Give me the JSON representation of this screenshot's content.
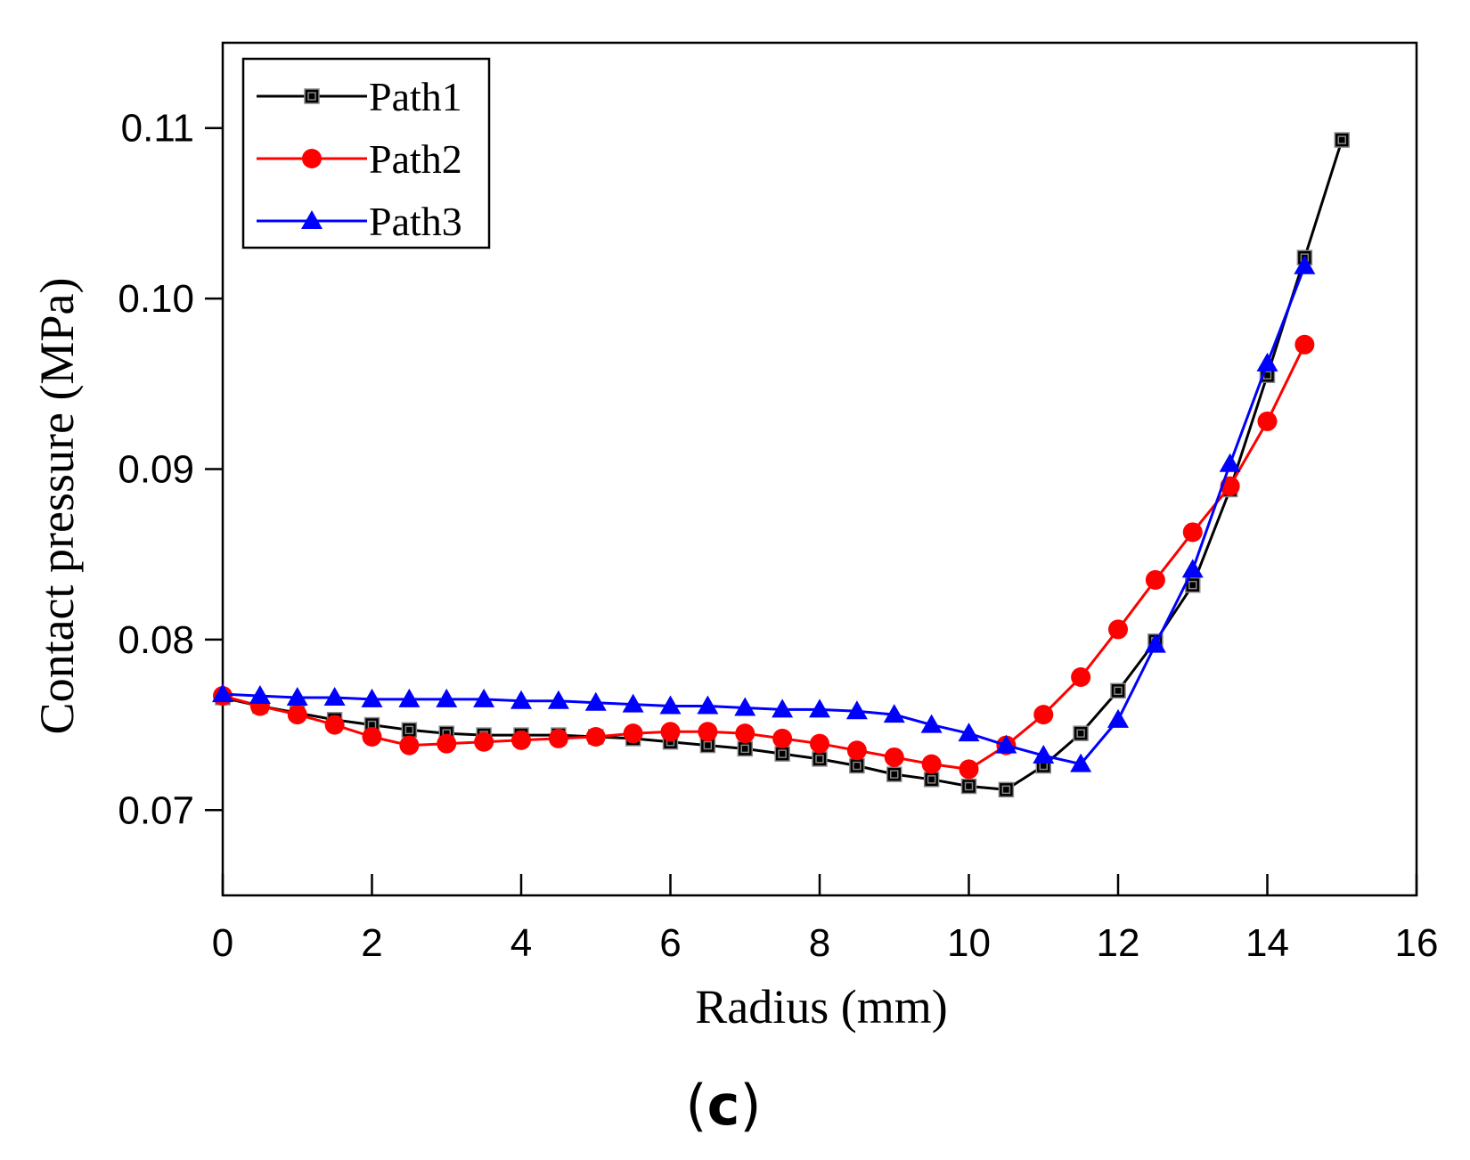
{
  "chart_data": {
    "type": "line",
    "xlabel": "Radius (mm)",
    "ylabel": "Contact pressure (MPa)",
    "xlim": [
      0,
      16
    ],
    "ylim": [
      0.065,
      0.115
    ],
    "xticks": [
      0,
      2,
      4,
      6,
      8,
      10,
      12,
      14,
      16
    ],
    "yticks": [
      0.07,
      0.08,
      0.09,
      0.1,
      0.11
    ],
    "xtick_labels": [
      "0",
      "2",
      "4",
      "6",
      "8",
      "10",
      "12",
      "14",
      "16"
    ],
    "ytick_labels": [
      "0.07",
      "0.08",
      "0.09",
      "0.10",
      "0.11"
    ],
    "legend_position": "top-left",
    "series": [
      {
        "name": "Path1",
        "color": "#000000",
        "marker": "square",
        "x": [
          0,
          0.5,
          1,
          1.5,
          2,
          2.5,
          3,
          3.5,
          4,
          4.5,
          5,
          5.5,
          6,
          6.5,
          7,
          7.5,
          8,
          8.5,
          9,
          9.5,
          10,
          10.5,
          11,
          11.5,
          12,
          12.5,
          13,
          13.5,
          14,
          14.5,
          15
        ],
        "y": [
          0.0766,
          0.0761,
          0.0757,
          0.0753,
          0.075,
          0.0747,
          0.0745,
          0.0744,
          0.0744,
          0.0744,
          0.0743,
          0.0742,
          0.074,
          0.0738,
          0.0736,
          0.0733,
          0.073,
          0.0726,
          0.0721,
          0.0718,
          0.0714,
          0.0712,
          0.0726,
          0.0745,
          0.077,
          0.0799,
          0.0832,
          0.0888,
          0.0955,
          0.1024,
          0.1093
        ]
      },
      {
        "name": "Path2",
        "color": "#ff0000",
        "marker": "circle",
        "x": [
          0,
          0.5,
          1,
          1.5,
          2,
          2.5,
          3,
          3.5,
          4,
          4.5,
          5,
          5.5,
          6,
          6.5,
          7,
          7.5,
          8,
          8.5,
          9,
          9.5,
          10,
          10.5,
          11,
          11.5,
          12,
          12.5,
          13,
          13.5,
          14,
          14.5
        ],
        "y": [
          0.0767,
          0.0761,
          0.0756,
          0.075,
          0.0743,
          0.0738,
          0.0739,
          0.074,
          0.0741,
          0.0742,
          0.0743,
          0.0745,
          0.0746,
          0.0746,
          0.0745,
          0.0742,
          0.0739,
          0.0735,
          0.0731,
          0.0727,
          0.0724,
          0.0738,
          0.0756,
          0.0778,
          0.0806,
          0.0835,
          0.0863,
          0.089,
          0.0928,
          0.0973
        ]
      },
      {
        "name": "Path3",
        "color": "#0000ff",
        "marker": "triangle",
        "x": [
          0,
          0.5,
          1,
          1.5,
          2,
          2.5,
          3,
          3.5,
          4,
          4.5,
          5,
          5.5,
          6,
          6.5,
          7,
          7.5,
          8,
          8.5,
          9,
          9.5,
          10,
          10.5,
          11,
          11.5,
          12,
          12.5,
          13,
          13.5,
          14,
          14.5
        ],
        "y": [
          0.0768,
          0.0767,
          0.0766,
          0.0766,
          0.0765,
          0.0765,
          0.0765,
          0.0765,
          0.0764,
          0.0764,
          0.0763,
          0.0762,
          0.0761,
          0.0761,
          0.076,
          0.0759,
          0.0759,
          0.0758,
          0.0756,
          0.075,
          0.0745,
          0.0738,
          0.0732,
          0.0727,
          0.0753,
          0.0797,
          0.0841,
          0.0903,
          0.0962,
          0.1019
        ]
      }
    ]
  },
  "panel_label": {
    "open": "(",
    "letter": "c",
    "close": ")"
  }
}
